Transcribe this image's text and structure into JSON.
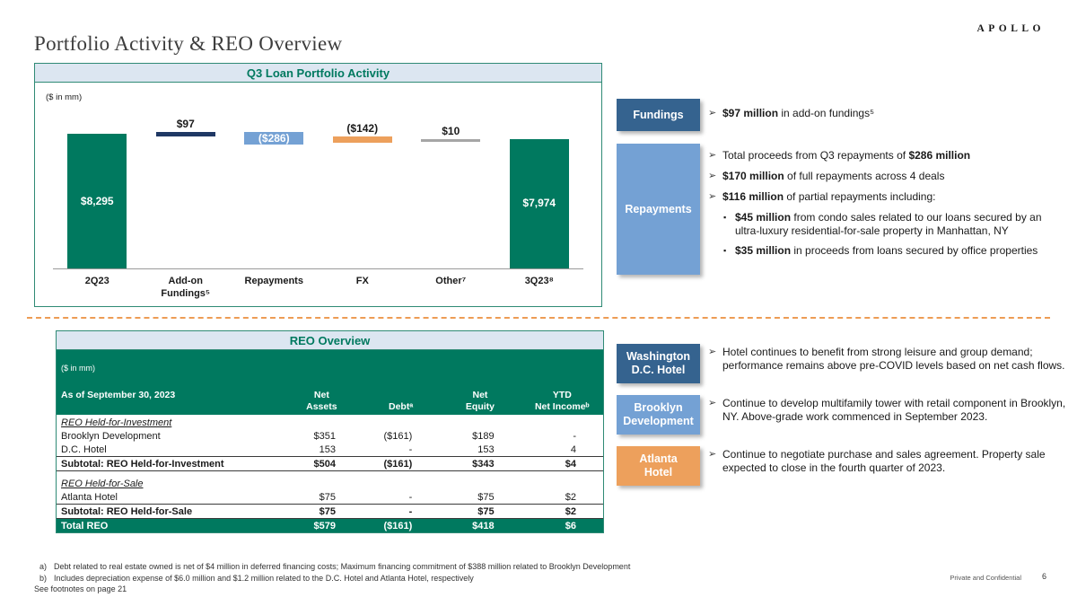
{
  "slide": {
    "title": "Portfolio Activity & REO Overview",
    "logo": "APOLLO",
    "page_number": "6",
    "confidential_label": "Private and Confidential"
  },
  "icons": {
    "arrow_bullet": "➢",
    "square_bullet": "▪"
  },
  "colors": {
    "teal": "#00795F",
    "panel_border": "#2F8A75",
    "header_strip_bg": "#DCE6F1",
    "dark_blue_box": "#35638F",
    "navy_bar": "#1F3864",
    "mid_blue": "#74A1D4",
    "orange": "#EDA05C",
    "divider_orange": "#ED9C55"
  },
  "chart": {
    "panel_title": "Q3 Loan Portfolio Activity",
    "units_label": "($ in mm)"
  },
  "chart_data": {
    "type": "bar",
    "subtype": "waterfall",
    "title": "Q3 Loan Portfolio Activity",
    "units": "$ in mm",
    "categories": [
      "2Q23",
      "Add-on\nFundings⁵",
      "Repayments",
      "FX",
      "Other⁷",
      "3Q23⁸"
    ],
    "values": [
      8295,
      97,
      -286,
      -142,
      10,
      7974
    ],
    "bar_types": [
      "total",
      "delta",
      "delta",
      "delta",
      "delta",
      "total"
    ],
    "labels": [
      "$8,295",
      "$97",
      "($286)",
      "($142)",
      "$10",
      "$7,974"
    ],
    "label_positions": [
      "inside",
      "above",
      "inside",
      "above",
      "above",
      "inside"
    ],
    "colors": [
      "#00795F",
      "#1F3864",
      "#74A1D4",
      "#EDA05C",
      "#A6A6A6",
      "#00795F"
    ]
  },
  "fundings_section": {
    "box_label": "Fundings",
    "bullets": [
      {
        "pre": "",
        "bold": "$97 million",
        "post": " in add-on fundings⁵"
      }
    ]
  },
  "repayments_section": {
    "box_label": "Repayments",
    "bullets": [
      {
        "pre": "Total proceeds from Q3 repayments of ",
        "bold": "$286 million",
        "post": ""
      },
      {
        "pre": "",
        "bold": "$170 million",
        "post": " of full repayments across 4 deals"
      },
      {
        "pre": "",
        "bold": "$116 million",
        "post": " of partial repayments including:"
      }
    ],
    "sub_bullets": [
      {
        "pre": "",
        "bold": "$45 million",
        "post": " from condo sales related to our loans secured by an ultra-luxury residential-for-sale property in Manhattan, NY"
      },
      {
        "pre": "",
        "bold": "$35 million",
        "post": " in proceeds from loans secured by office properties"
      }
    ]
  },
  "reo": {
    "panel_title": "REO Overview",
    "header": {
      "col0_line1": "($ in mm)",
      "col0_line2": "As of September 30, 2023",
      "cols": [
        "Net\nAssets",
        "Debtᵃ",
        "Net\nEquity",
        "YTD\nNet Incomeᵇ"
      ]
    },
    "rows": [
      {
        "type": "section",
        "label": "REO Held-for-Investment"
      },
      {
        "type": "data",
        "label": "Brooklyn Development",
        "cells": [
          "$351",
          "($161)",
          "$189",
          "-"
        ]
      },
      {
        "type": "data",
        "label": "D.C. Hotel",
        "cells": [
          "153",
          "-",
          "153",
          "4"
        ]
      },
      {
        "type": "subtotal",
        "label": "Subtotal: REO Held-for-Investment",
        "cells": [
          "$504",
          "($161)",
          "$343",
          "$4"
        ]
      },
      {
        "type": "spacer"
      },
      {
        "type": "section",
        "label": "REO Held-for-Sale"
      },
      {
        "type": "data",
        "label": "Atlanta Hotel",
        "cells": [
          "$75",
          "-",
          "$75",
          "$2"
        ]
      },
      {
        "type": "subtotal",
        "label": "Subtotal: REO Held-for-Sale",
        "cells": [
          "$75",
          "-",
          "$75",
          "$2"
        ]
      },
      {
        "type": "total",
        "label": "Total REO",
        "cells": [
          "$579",
          "($161)",
          "$418",
          "$6"
        ]
      }
    ]
  },
  "properties": [
    {
      "box_label": "Washington\nD.C. Hotel",
      "text": "Hotel continues to benefit from strong leisure and group demand; performance remains above pre-COVID levels based on net cash flows."
    },
    {
      "box_label": "Brooklyn\nDevelopment",
      "text": "Continue to develop multifamily tower with retail component in Brooklyn, NY. Above-grade work commenced in September 2023."
    },
    {
      "box_label": "Atlanta\nHotel",
      "text": "Continue to negotiate purchase and sales agreement. Property sale expected to close in the fourth quarter of 2023."
    }
  ],
  "footnotes": {
    "a_label": "a)",
    "a_text": "Debt related to real estate owned is net of $4 million in deferred financing costs; Maximum financing commitment of $388 million related to Brooklyn Development",
    "b_label": "b)",
    "b_text": "Includes depreciation expense of $6.0 million and $1.2 million related to the D.C. Hotel and Atlanta Hotel, respectively",
    "see": "See footnotes on page 21"
  }
}
